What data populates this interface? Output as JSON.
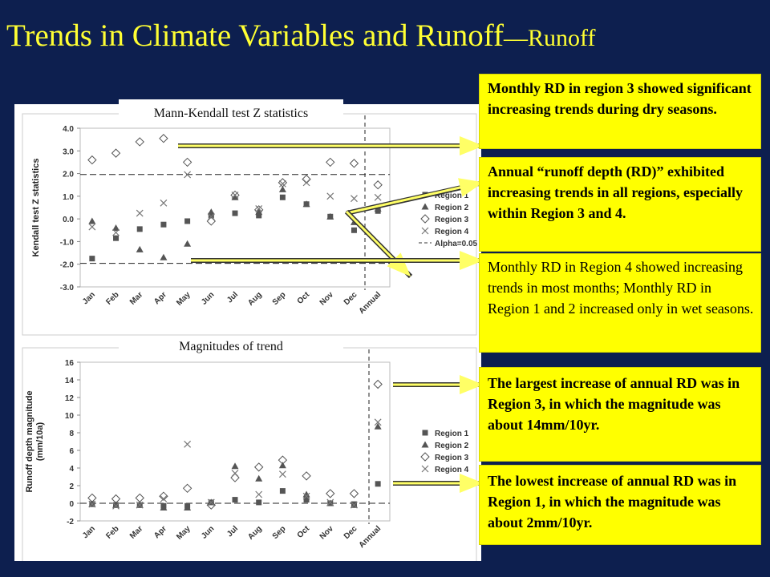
{
  "title": {
    "main": "Trends in Climate Variables and Runoff",
    "sub": "—Runoff"
  },
  "chart_data": [
    {
      "type": "scatter",
      "title": "Mann-Kendall test Z statistics",
      "xlabel": "",
      "ylabel": "Kendall test Z statistics",
      "categories": [
        "Jan",
        "Feb",
        "Mar",
        "Apr",
        "May",
        "Jun",
        "Jul",
        "Aug",
        "Sep",
        "Oct",
        "Nov",
        "Dec",
        "Annual"
      ],
      "ylim": [
        -3.0,
        4.0
      ],
      "yticks": [
        "4.0",
        "3.0",
        "2.0",
        "1.0",
        "0.0",
        "-1.0",
        "-2.0",
        "-3.0"
      ],
      "yticks_values": [
        4,
        3,
        2,
        1,
        0,
        -1,
        -2,
        -3
      ],
      "reference_lines": [
        1.96,
        -1.96
      ],
      "legend_position": "right",
      "series": [
        {
          "name": "Region 1",
          "marker": "square",
          "color": "#555555",
          "values": [
            -1.75,
            -0.85,
            -0.45,
            -0.25,
            -0.1,
            0.15,
            0.25,
            0.15,
            0.95,
            0.65,
            0.1,
            -0.5,
            0.35
          ]
        },
        {
          "name": "Region 2",
          "marker": "triangle",
          "color": "#555555",
          "values": [
            -0.1,
            -0.4,
            -1.35,
            -1.7,
            -1.1,
            0.3,
            0.95,
            0.3,
            1.3,
            0.65,
            0.1,
            -0.15,
            0.45
          ]
        },
        {
          "name": "Region 3",
          "marker": "diamond",
          "color": "#555555",
          "values": [
            2.6,
            2.9,
            3.4,
            3.55,
            2.5,
            -0.1,
            1.05,
            0.4,
            1.6,
            1.75,
            2.5,
            2.45,
            1.5
          ]
        },
        {
          "name": "Region 4",
          "marker": "x",
          "color": "#777777",
          "values": [
            -0.35,
            -0.6,
            0.25,
            0.7,
            1.95,
            0.1,
            1.05,
            0.45,
            1.55,
            1.6,
            1.0,
            0.9,
            0.95
          ]
        },
        {
          "name": "Alpha=0.05",
          "marker": "dash",
          "color": "#333333",
          "values": []
        }
      ]
    },
    {
      "type": "scatter",
      "title": "Magnitudes of trend",
      "xlabel": "",
      "ylabel": "Runoff depth magnitude (mm/10a)",
      "categories": [
        "Jan",
        "Feb",
        "Mar",
        "Apr",
        "May",
        "Jun",
        "Jul",
        "Aug",
        "Sep",
        "Oct",
        "Nov",
        "Dec",
        "Annual"
      ],
      "ylim": [
        -2,
        16
      ],
      "yticks": [
        "16",
        "14",
        "12",
        "10",
        "8",
        "6",
        "4",
        "2",
        "0",
        "-2"
      ],
      "yticks_values": [
        16,
        14,
        12,
        10,
        8,
        6,
        4,
        2,
        0,
        -2
      ],
      "reference_lines": [
        0
      ],
      "legend_position": "right",
      "series": [
        {
          "name": "Region 1",
          "marker": "square",
          "color": "#555555",
          "values": [
            -0.1,
            -0.2,
            -0.2,
            -0.3,
            -0.3,
            0.1,
            0.4,
            0.1,
            1.4,
            0.4,
            0.0,
            -0.1,
            2.2
          ]
        },
        {
          "name": "Region 2",
          "marker": "triangle",
          "color": "#555555",
          "values": [
            -0.1,
            -0.2,
            -0.2,
            -0.5,
            -0.5,
            0.1,
            4.2,
            2.8,
            4.3,
            1.0,
            0.0,
            -0.2,
            8.7
          ]
        },
        {
          "name": "Region 3",
          "marker": "diamond",
          "color": "#555555",
          "values": [
            0.6,
            0.5,
            0.6,
            0.8,
            1.7,
            -0.2,
            2.9,
            4.1,
            4.9,
            3.1,
            1.1,
            1.1,
            13.5
          ]
        },
        {
          "name": "Region 4",
          "marker": "x",
          "color": "#777777",
          "values": [
            -0.1,
            -0.3,
            -0.2,
            0.5,
            6.7,
            0.1,
            3.4,
            1.0,
            3.3,
            0.8,
            0.1,
            -0.2,
            9.2
          ]
        }
      ]
    }
  ],
  "annotations": [
    {
      "text": "Monthly RD in region 3 showed significant increasing trends during dry seasons."
    },
    {
      "text": "Annual “runoff depth (RD)” exhibited increasing trends in all regions, especially within Region 3 and 4."
    },
    {
      "text": "Monthly RD in Region 4 showed increasing trends in most months; Monthly RD in Region 1 and 2 increased only in wet seasons."
    },
    {
      "text": "The largest increase of annual RD was in Region 3, in which the magnitude was about 14mm/10yr."
    },
    {
      "text": "The lowest increase of annual RD was in Region 1, in which the magnitude was about 2mm/10yr."
    }
  ],
  "colors": {
    "background": "#0d1f4f",
    "title": "#ffff33",
    "annotation_bg": "#ffff00"
  }
}
